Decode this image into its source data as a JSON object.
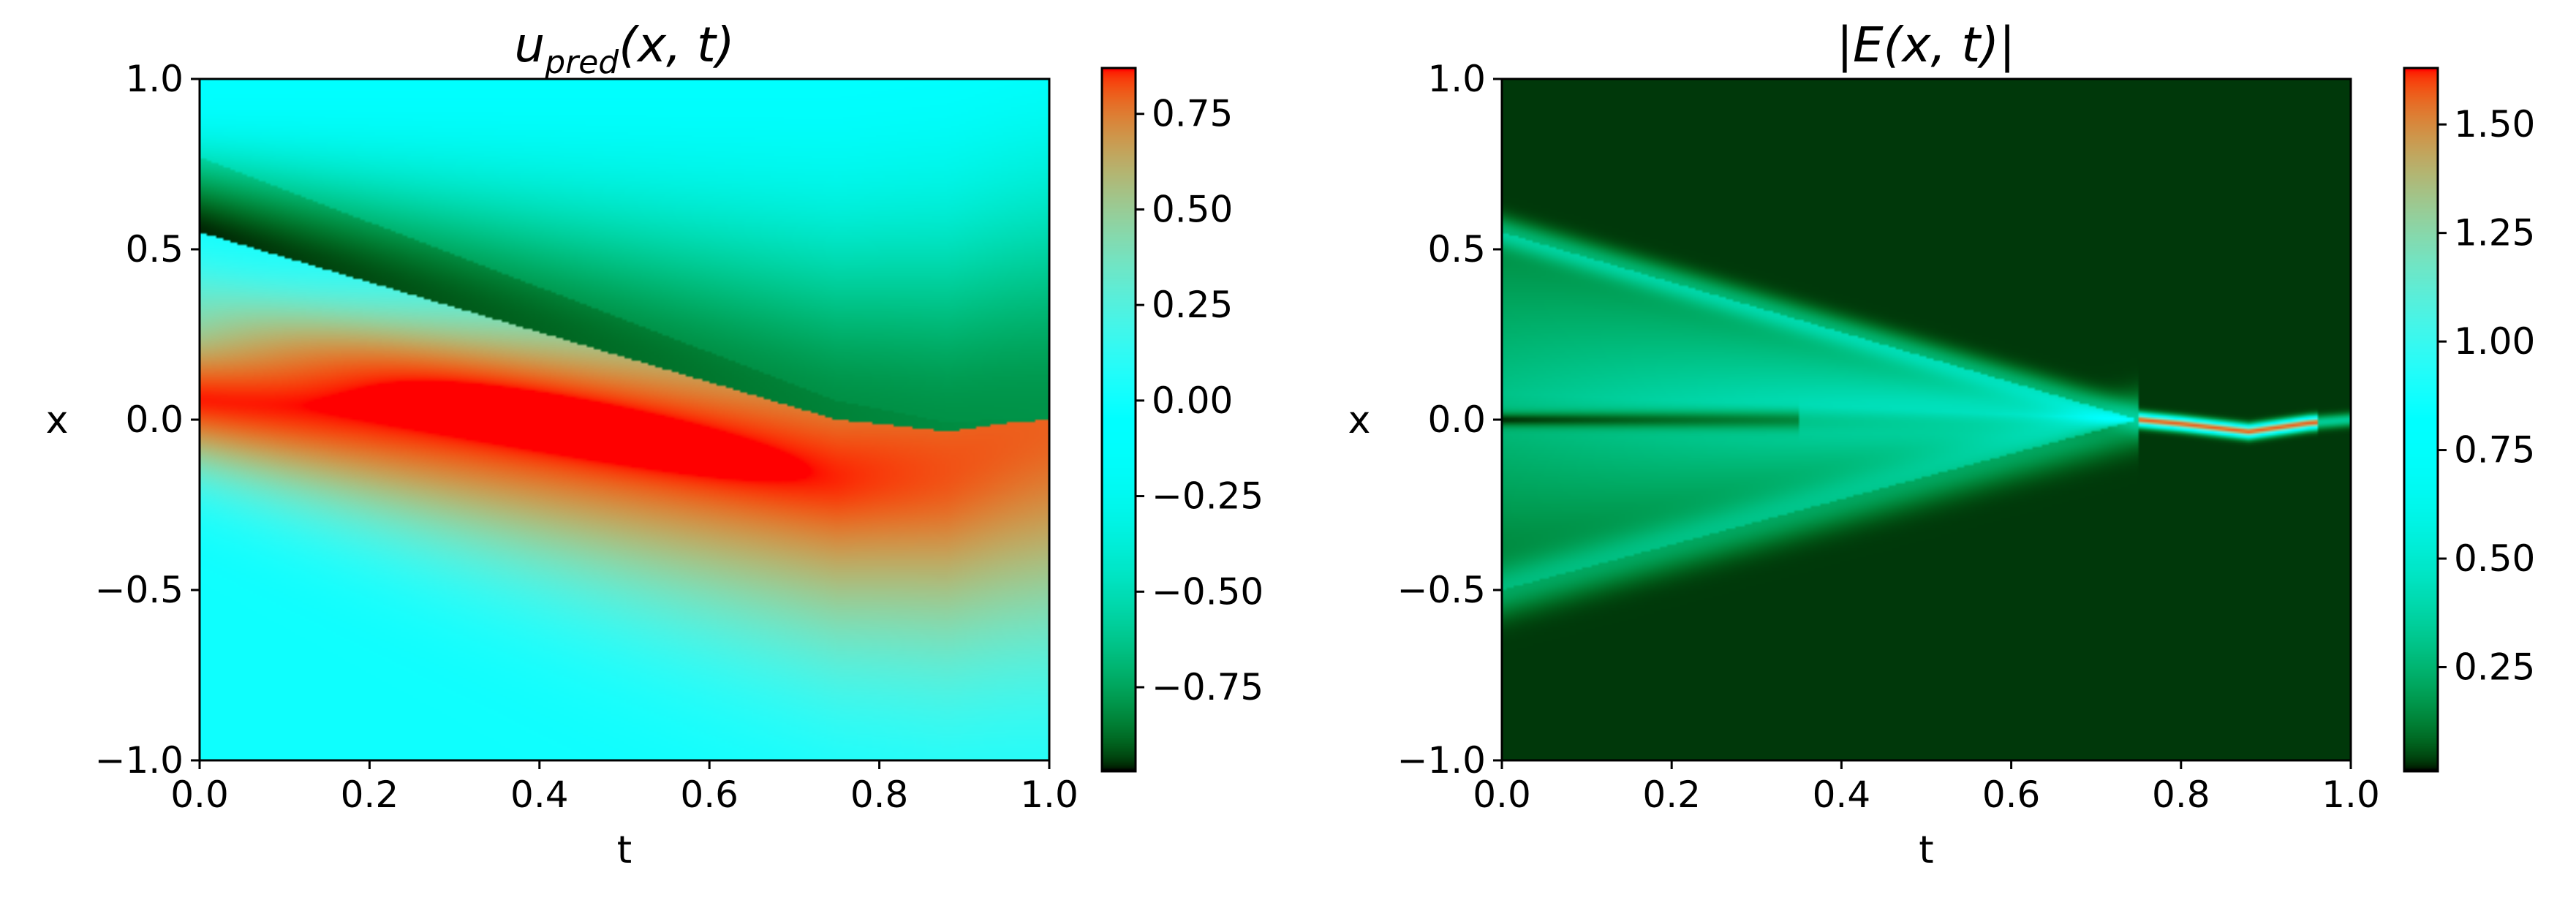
{
  "chart_data": [
    {
      "type": "heatmap",
      "title_main": "u",
      "title_sub": "pred",
      "title_rest": "(x, t)",
      "xlabel": "t",
      "ylabel": "x",
      "xlim": [
        0.0,
        1.0
      ],
      "ylim": [
        -1.0,
        1.0
      ],
      "xticks": [
        0.0,
        0.2,
        0.4,
        0.6,
        0.8,
        1.0
      ],
      "xtick_labels": [
        "0.0",
        "0.2",
        "0.4",
        "0.6",
        "0.8",
        "1.0"
      ],
      "yticks": [
        -1.0,
        -0.5,
        0.0,
        0.5,
        1.0
      ],
      "ytick_labels": [
        "−1.0",
        "−0.5",
        "0.0",
        "0.5",
        "1.0"
      ],
      "colormap": "rainbow",
      "colorbar_range": [
        -0.97,
        0.87
      ],
      "colorbar_ticks": [
        -0.75,
        -0.5,
        -0.25,
        0.0,
        0.25,
        0.5,
        0.75
      ],
      "colorbar_tick_labels": [
        "−0.75",
        "−0.50",
        "−0.25",
        "0.00",
        "0.25",
        "0.50",
        "0.75"
      ],
      "field": "predicted solution u(x,t): negative band above a shock line from x=0.55 at t=0 converging to x=0 near t=0.75, positive band below"
    },
    {
      "type": "heatmap",
      "title_main": "|E(x, t)|",
      "xlabel": "t",
      "ylabel": "x",
      "xlim": [
        0.0,
        1.0
      ],
      "ylim": [
        -1.0,
        1.0
      ],
      "xticks": [
        0.0,
        0.2,
        0.4,
        0.6,
        0.8,
        1.0
      ],
      "xtick_labels": [
        "0.0",
        "0.2",
        "0.4",
        "0.6",
        "0.8",
        "1.0"
      ],
      "yticks": [
        -1.0,
        -0.5,
        0.0,
        0.5,
        1.0
      ],
      "ytick_labels": [
        "−1.0",
        "−0.5",
        "0.0",
        "0.5",
        "1.0"
      ],
      "colormap": "rainbow",
      "colorbar_range": [
        0.01,
        1.63
      ],
      "colorbar_ticks": [
        0.25,
        0.5,
        0.75,
        1.0,
        1.25,
        1.5
      ],
      "colorbar_tick_labels": [
        "0.25",
        "0.50",
        "0.75",
        "1.00",
        "1.25",
        "1.50"
      ],
      "field": "absolute error: near zero except a wedge converging toward x=0 around t=0.75 and a peak of about 1.6 near x=0 for t between 0.75 and 0.95"
    }
  ]
}
